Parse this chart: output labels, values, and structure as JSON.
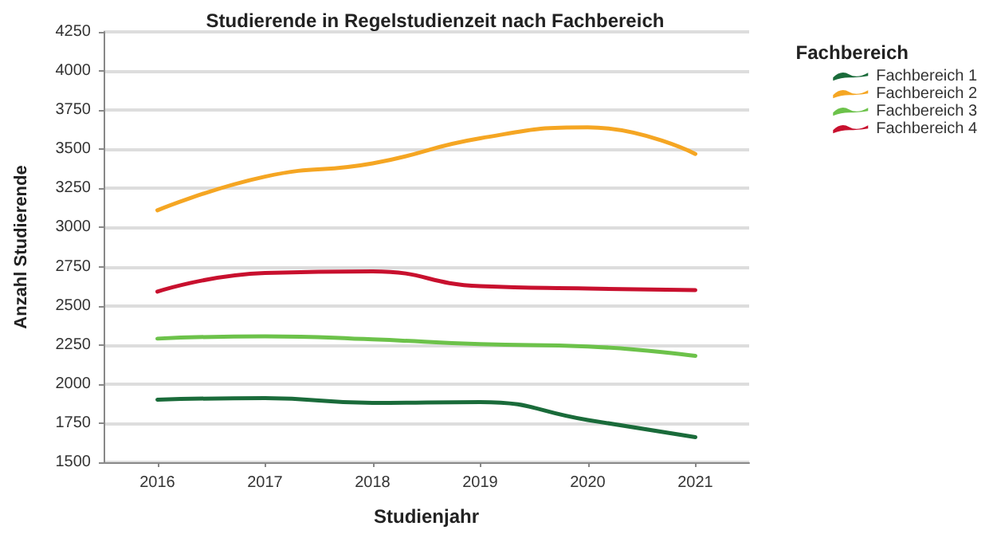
{
  "chart_data": {
    "type": "line",
    "title": "Studierende in Regelstudienzeit nach Fachbereich",
    "xlabel": "Studienjahr",
    "ylabel": "Anzahl Studierende",
    "legend_title": "Fachbereich",
    "categories": [
      "2016",
      "2017",
      "2018",
      "2019",
      "2020",
      "2021"
    ],
    "series": [
      {
        "name": "Fachbereich 1",
        "color": "#1a6b3a",
        "values": [
          1900,
          1910,
          1880,
          1885,
          1770,
          1660
        ]
      },
      {
        "name": "Fachbereich 2",
        "color": "#f5a623",
        "values": [
          3110,
          3325,
          3410,
          3570,
          3640,
          3470
        ]
      },
      {
        "name": "Fachbereich 3",
        "color": "#6cc24a",
        "values": [
          2290,
          2305,
          2285,
          2255,
          2240,
          2180
        ]
      },
      {
        "name": "Fachbereich 4",
        "color": "#c8102e",
        "values": [
          2590,
          2710,
          2720,
          2625,
          2610,
          2600
        ]
      }
    ],
    "ylim": [
      1500,
      4250
    ],
    "yticks": [
      1500,
      1750,
      2000,
      2250,
      2500,
      2750,
      3000,
      3250,
      3500,
      3750,
      4000,
      4250
    ],
    "grid": "y",
    "legend": "top right",
    "marker": "none",
    "line_style": "solid"
  }
}
